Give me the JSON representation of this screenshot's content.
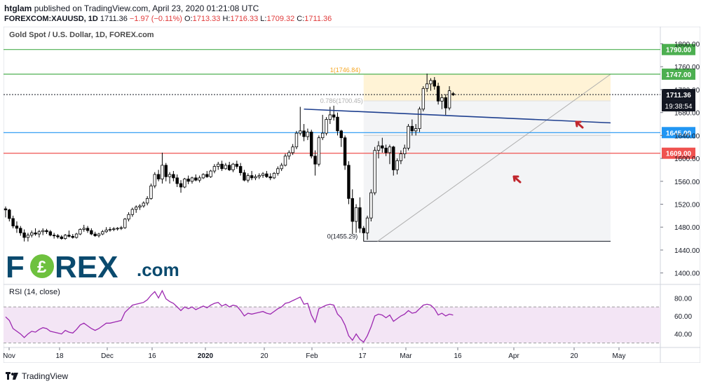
{
  "header": {
    "user": "htglam",
    "published": "published on TradingView.com, April 23, 2020 01:21:08 UTC",
    "symbol": "FOREXCOM:XAUUSD, 1D",
    "last": "1711.36",
    "change": "−1.97 (−0.11%)",
    "o_label": "O:",
    "o_value": "1713.33",
    "h_label": "H:",
    "h_value": "1716.33",
    "l_label": "L:",
    "l_value": "1709.32",
    "c_label": "C:",
    "c_value": "1711.36"
  },
  "colors": {
    "up": "#ffffff",
    "down": "#000000",
    "outline": "#000000",
    "rsi": "#9c27b0",
    "green": "#4caf50",
    "blue_line": "#2196f3",
    "red_line": "#ef5350",
    "trend": "#1e3f8f"
  },
  "chart_data": [
    {
      "type": "candlestick",
      "title": "Gold Spot / U.S. Dollar, 1D, FOREX.com",
      "ylim": [
        1380,
        1830
      ],
      "y_ticks": [
        "1800.00",
        "1760.00",
        "1720.00",
        "1680.00",
        "1640.00",
        "1600.00",
        "1560.00",
        "1520.00",
        "1480.00",
        "1440.00",
        "1400.00"
      ],
      "x_ticks": [
        "Nov",
        "18",
        "Dec",
        "16",
        "2020",
        "20",
        "Feb",
        "17",
        "Mar",
        "16",
        "Apr",
        "20",
        "May"
      ],
      "horizontal_levels": [
        {
          "label": "1790.00",
          "value": 1790.0,
          "color": "#4caf50"
        },
        {
          "label": "1747.00",
          "value": 1747.0,
          "color": "#4caf50"
        },
        {
          "label": "1711.36",
          "value": 1711.36,
          "color": "#131722"
        },
        {
          "label": "1645.00",
          "value": 1645.0,
          "color": "#2196f3"
        },
        {
          "label": "1609.00",
          "value": 1609.0,
          "color": "#ef5350"
        }
      ],
      "countdown": "19:38:54",
      "fib_labels": [
        {
          "text": "1(1746.84)",
          "value": 1746.84
        },
        {
          "text": "0.786(1700.45)",
          "value": 1700.45
        },
        {
          "text": "0(1455.29)",
          "value": 1455.29
        }
      ],
      "ohlc": [
        [
          1512,
          1516,
          1497,
          1510
        ],
        [
          1510,
          1512,
          1490,
          1495
        ],
        [
          1495,
          1500,
          1478,
          1482
        ],
        [
          1482,
          1490,
          1470,
          1478
        ],
        [
          1478,
          1482,
          1465,
          1470
        ],
        [
          1470,
          1476,
          1455,
          1462
        ],
        [
          1462,
          1470,
          1455,
          1466
        ],
        [
          1466,
          1474,
          1462,
          1470
        ],
        [
          1470,
          1478,
          1465,
          1468
        ],
        [
          1468,
          1475,
          1462,
          1472
        ],
        [
          1472,
          1478,
          1466,
          1474
        ],
        [
          1474,
          1477,
          1468,
          1472
        ],
        [
          1472,
          1475,
          1464,
          1466
        ],
        [
          1466,
          1470,
          1460,
          1465
        ],
        [
          1465,
          1468,
          1460,
          1463
        ],
        [
          1463,
          1466,
          1458,
          1460
        ],
        [
          1460,
          1468,
          1458,
          1466
        ],
        [
          1466,
          1474,
          1462,
          1464
        ],
        [
          1464,
          1468,
          1460,
          1462
        ],
        [
          1462,
          1470,
          1460,
          1468
        ],
        [
          1468,
          1478,
          1466,
          1476
        ],
        [
          1476,
          1484,
          1472,
          1478
        ],
        [
          1478,
          1482,
          1470,
          1474
        ],
        [
          1474,
          1478,
          1466,
          1468
        ],
        [
          1468,
          1472,
          1463,
          1465
        ],
        [
          1465,
          1470,
          1462,
          1468
        ],
        [
          1468,
          1475,
          1466,
          1472
        ],
        [
          1472,
          1480,
          1470,
          1475
        ],
        [
          1475,
          1480,
          1472,
          1476
        ],
        [
          1476,
          1480,
          1473,
          1477
        ],
        [
          1477,
          1480,
          1474,
          1478
        ],
        [
          1478,
          1482,
          1475,
          1479
        ],
        [
          1479,
          1496,
          1477,
          1494
        ],
        [
          1494,
          1506,
          1490,
          1502
        ],
        [
          1502,
          1514,
          1498,
          1511
        ],
        [
          1511,
          1518,
          1505,
          1515
        ],
        [
          1515,
          1520,
          1510,
          1517
        ],
        [
          1517,
          1525,
          1514,
          1522
        ],
        [
          1522,
          1534,
          1518,
          1530
        ],
        [
          1530,
          1556,
          1528,
          1552
        ],
        [
          1552,
          1576,
          1548,
          1572
        ],
        [
          1572,
          1580,
          1560,
          1564
        ],
        [
          1564,
          1610,
          1556,
          1588
        ],
        [
          1588,
          1592,
          1560,
          1568
        ],
        [
          1568,
          1576,
          1556,
          1572
        ],
        [
          1572,
          1578,
          1560,
          1566
        ],
        [
          1566,
          1572,
          1550,
          1556
        ],
        [
          1556,
          1562,
          1540,
          1550
        ],
        [
          1550,
          1566,
          1548,
          1564
        ],
        [
          1564,
          1570,
          1555,
          1560
        ],
        [
          1560,
          1568,
          1556,
          1566
        ],
        [
          1566,
          1572,
          1560,
          1562
        ],
        [
          1562,
          1570,
          1558,
          1566
        ],
        [
          1566,
          1574,
          1564,
          1572
        ],
        [
          1572,
          1578,
          1566,
          1568
        ],
        [
          1568,
          1580,
          1566,
          1578
        ],
        [
          1578,
          1590,
          1574,
          1586
        ],
        [
          1586,
          1594,
          1580,
          1590
        ],
        [
          1590,
          1596,
          1578,
          1582
        ],
        [
          1582,
          1592,
          1580,
          1588
        ],
        [
          1588,
          1594,
          1578,
          1580
        ],
        [
          1580,
          1592,
          1576,
          1590
        ],
        [
          1590,
          1596,
          1582,
          1586
        ],
        [
          1586,
          1592,
          1570,
          1575
        ],
        [
          1575,
          1580,
          1560,
          1562
        ],
        [
          1562,
          1574,
          1558,
          1570
        ],
        [
          1570,
          1578,
          1562,
          1566
        ],
        [
          1566,
          1572,
          1562,
          1568
        ],
        [
          1568,
          1574,
          1564,
          1570
        ],
        [
          1570,
          1576,
          1566,
          1573
        ],
        [
          1573,
          1578,
          1566,
          1568
        ],
        [
          1568,
          1574,
          1562,
          1566
        ],
        [
          1566,
          1576,
          1564,
          1574
        ],
        [
          1574,
          1586,
          1570,
          1582
        ],
        [
          1582,
          1592,
          1578,
          1588
        ],
        [
          1588,
          1608,
          1586,
          1604
        ],
        [
          1604,
          1614,
          1598,
          1610
        ],
        [
          1610,
          1625,
          1606,
          1620
        ],
        [
          1620,
          1648,
          1616,
          1644
        ],
        [
          1644,
          1690,
          1640,
          1648
        ],
        [
          1648,
          1660,
          1630,
          1638
        ],
        [
          1638,
          1652,
          1632,
          1646
        ],
        [
          1646,
          1650,
          1600,
          1604
        ],
        [
          1604,
          1614,
          1570,
          1590
        ],
        [
          1590,
          1640,
          1586,
          1636
        ],
        [
          1636,
          1676,
          1632,
          1644
        ],
        [
          1644,
          1672,
          1640,
          1668
        ],
        [
          1668,
          1690,
          1660,
          1676
        ],
        [
          1676,
          1692,
          1666,
          1672
        ],
        [
          1672,
          1680,
          1640,
          1648
        ],
        [
          1648,
          1650,
          1620,
          1636
        ],
        [
          1636,
          1640,
          1580,
          1588
        ],
        [
          1588,
          1595,
          1520,
          1530
        ],
        [
          1530,
          1546,
          1468,
          1490
        ],
        [
          1490,
          1520,
          1470,
          1514
        ],
        [
          1514,
          1532,
          1470,
          1478
        ],
        [
          1478,
          1482,
          1455,
          1470
        ],
        [
          1470,
          1500,
          1458,
          1496
        ],
        [
          1496,
          1546,
          1490,
          1540
        ],
        [
          1540,
          1620,
          1536,
          1614
        ],
        [
          1614,
          1630,
          1600,
          1622
        ],
        [
          1622,
          1636,
          1610,
          1618
        ],
        [
          1618,
          1624,
          1604,
          1610
        ],
        [
          1610,
          1624,
          1590,
          1620
        ],
        [
          1620,
          1622,
          1570,
          1580
        ],
        [
          1580,
          1600,
          1572,
          1596
        ],
        [
          1596,
          1614,
          1590,
          1608
        ],
        [
          1608,
          1624,
          1600,
          1618
        ],
        [
          1618,
          1660,
          1614,
          1656
        ],
        [
          1656,
          1668,
          1640,
          1648
        ],
        [
          1648,
          1660,
          1640,
          1652
        ],
        [
          1652,
          1690,
          1646,
          1686
        ],
        [
          1686,
          1726,
          1682,
          1722
        ],
        [
          1722,
          1748,
          1716,
          1730
        ],
        [
          1730,
          1740,
          1718,
          1736
        ],
        [
          1736,
          1742,
          1720,
          1726
        ],
        [
          1726,
          1732,
          1694,
          1700
        ],
        [
          1700,
          1712,
          1686,
          1706
        ],
        [
          1706,
          1712,
          1676,
          1688
        ],
        [
          1688,
          1726,
          1684,
          1718
        ],
        [
          1713,
          1716,
          1709,
          1711
        ]
      ]
    },
    {
      "type": "line",
      "title": "RSI (14, close)",
      "ylim": [
        25,
        95
      ],
      "y_ticks": [
        "80.00",
        "60.00",
        "40.00"
      ],
      "bands": [
        30,
        70
      ],
      "series": [
        {
          "values": [
            59,
            55,
            46,
            43,
            40,
            36,
            40,
            43,
            42,
            45,
            47,
            46,
            43,
            42,
            41,
            40,
            44,
            42,
            41,
            45,
            50,
            52,
            49,
            46,
            44,
            46,
            49,
            52,
            52,
            53,
            54,
            55,
            64,
            68,
            72,
            73,
            74,
            75,
            78,
            83,
            87,
            80,
            88,
            79,
            76,
            74,
            70,
            66,
            70,
            68,
            70,
            67,
            69,
            71,
            69,
            72,
            74,
            75,
            71,
            73,
            70,
            72,
            71,
            66,
            60,
            63,
            62,
            63,
            64,
            65,
            63,
            62,
            65,
            68,
            70,
            74,
            75,
            77,
            79,
            81,
            73,
            74,
            61,
            53,
            68,
            70,
            72,
            73,
            72,
            62,
            58,
            50,
            38,
            33,
            40,
            34,
            31,
            38,
            48,
            60,
            62,
            61,
            58,
            61,
            54,
            57,
            60,
            62,
            66,
            63,
            64,
            68,
            72,
            73,
            72,
            68,
            61,
            63,
            60,
            62,
            61
          ]
        }
      ]
    }
  ]
}
